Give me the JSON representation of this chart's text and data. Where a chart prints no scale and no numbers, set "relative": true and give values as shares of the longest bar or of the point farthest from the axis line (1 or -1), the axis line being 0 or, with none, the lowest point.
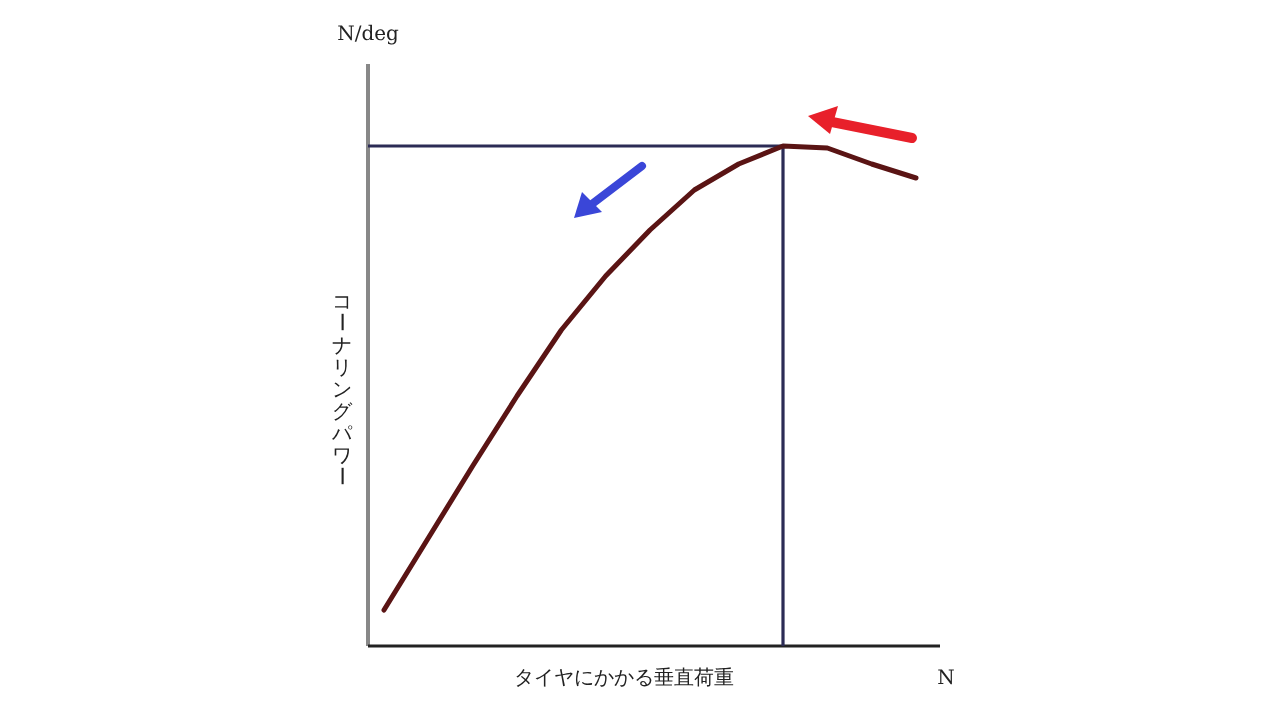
{
  "chart_data": {
    "type": "line",
    "relative": true,
    "xlabel": "タイヤにかかる垂直荷重",
    "ylabel": "コーナリングパワー",
    "annotations": [
      "N/deg",
      "N"
    ],
    "categories": [
      null,
      null,
      null,
      null,
      null,
      null,
      null,
      null,
      null,
      null,
      null,
      null,
      null
    ],
    "series": [
      {
        "color": "#5a1414",
        "values": [
          0.072,
          0.216,
          0.36,
          0.5,
          0.632,
          0.74,
          0.832,
          0.912,
          0.964,
          1,
          0.996,
          0.964,
          0.936
        ]
      }
    ],
    "ref_lines": [
      {
        "axis": "y",
        "value": 1,
        "color": "#2b2b55"
      }
    ]
  }
}
